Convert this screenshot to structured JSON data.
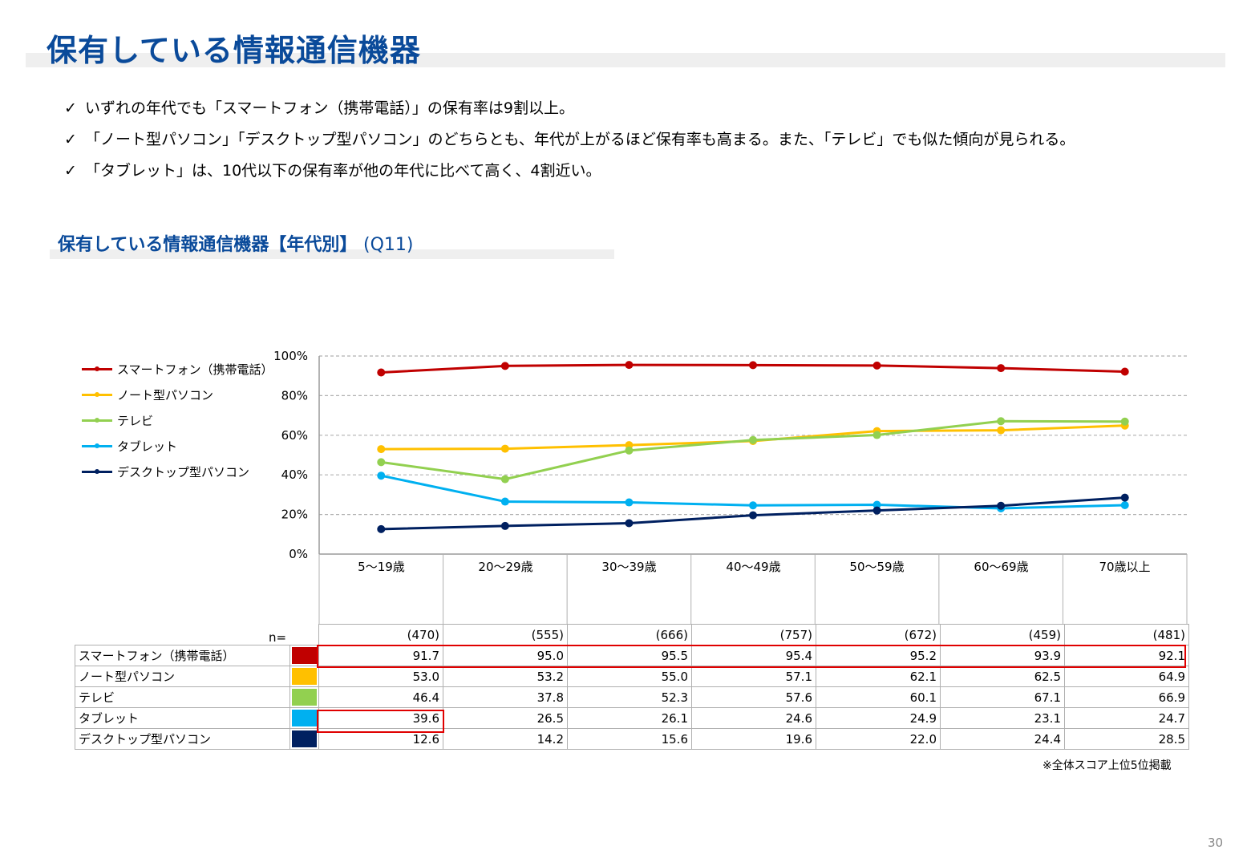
{
  "page": {
    "title": "保有している情報通信機器",
    "bullets": [
      "いずれの年代でも「スマートフォン（携帯電話）」の保有率は9割以上。",
      "「ノート型パソコン」「デスクトップ型パソコン」のどちらとも、年代が上がるほど保有率も高まる。また、「テレビ」でも似た傾向が見られる。",
      "「タブレット」は、10代以下の保有率が他の年代に比べて高く、4割近い。"
    ],
    "check_mark": "✓",
    "section_title": "保有している情報通信機器【年代別】",
    "section_q": "(Q11)",
    "n_label": "n=",
    "footnote": "※全体スコア上位5位掲載",
    "page_number": "30"
  },
  "chart_data": {
    "type": "line",
    "title": "保有している情報通信機器【年代別】(Q11)",
    "categories": [
      "5～19歳",
      "20～29歳",
      "30～39歳",
      "40～49歳",
      "50～59歳",
      "60～69歳",
      "70歳以上"
    ],
    "n": [
      "(470)",
      "(555)",
      "(666)",
      "(757)",
      "(672)",
      "(459)",
      "(481)"
    ],
    "ylim": [
      0,
      100
    ],
    "yticks": [
      "0%",
      "20%",
      "40%",
      "60%",
      "80%",
      "100%"
    ],
    "ytick_values": [
      0,
      20,
      40,
      60,
      80,
      100
    ],
    "grid": true,
    "legend_position": "top-left",
    "series": [
      {
        "name": "スマートフォン（携帯電話）",
        "color": "#c00000",
        "values": [
          91.7,
          95.0,
          95.5,
          95.4,
          95.2,
          93.9,
          92.1
        ]
      },
      {
        "name": "ノート型パソコン",
        "color": "#ffc000",
        "values": [
          53.0,
          53.2,
          55.0,
          57.1,
          62.1,
          62.5,
          64.9
        ]
      },
      {
        "name": "テレビ",
        "color": "#92d050",
        "values": [
          46.4,
          37.8,
          52.3,
          57.6,
          60.1,
          67.1,
          66.9
        ]
      },
      {
        "name": "タブレット",
        "color": "#00b0f0",
        "values": [
          39.6,
          26.5,
          26.1,
          24.6,
          24.9,
          23.1,
          24.7
        ]
      },
      {
        "name": "デスクトップ型パソコン",
        "color": "#002060",
        "values": [
          12.6,
          14.2,
          15.6,
          19.6,
          22.0,
          24.4,
          28.5
        ]
      }
    ],
    "table_values": {
      "smartphone": [
        "91.7",
        "95.0",
        "95.5",
        "95.4",
        "95.2",
        "93.9",
        "92.1"
      ],
      "notebook": [
        "53.0",
        "53.2",
        "55.0",
        "57.1",
        "62.1",
        "62.5",
        "64.9"
      ],
      "tv": [
        "46.4",
        "37.8",
        "52.3",
        "57.6",
        "60.1",
        "67.1",
        "66.9"
      ],
      "tablet": [
        "39.6",
        "26.5",
        "26.1",
        "24.6",
        "24.9",
        "23.1",
        "24.7"
      ],
      "desktop": [
        "12.6",
        "14.2",
        "15.6",
        "19.6",
        "22.0",
        "24.4",
        "28.5"
      ]
    },
    "highlights": [
      "スマートフォン（携帯電話）: all ages",
      "タブレット: 5～19歳"
    ]
  }
}
